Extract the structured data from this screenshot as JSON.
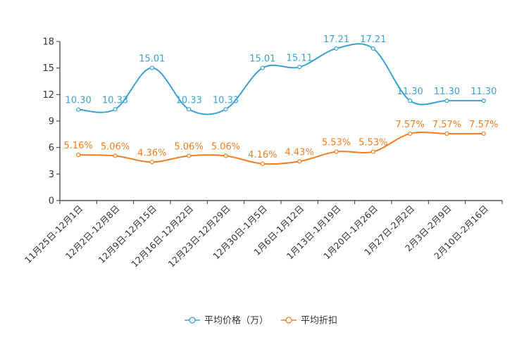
{
  "chart_data": {
    "type": "line",
    "title": "",
    "xlabel": "",
    "ylabel": "",
    "ylim": [
      0,
      18
    ],
    "yticks": [
      0,
      3,
      6,
      9,
      12,
      15,
      18
    ],
    "grid": false,
    "legend_position": "bottom-center",
    "categories": [
      "11月25日-12月1日",
      "12月2日-12月8日",
      "12月9日-12月15日",
      "12月16日-12月22日",
      "12月23日-12月29日",
      "12月30日-1月5日",
      "1月6日-1月12日",
      "1月13日-1月19日",
      "1月20日-1月26日",
      "1月27日-2月2日",
      "2月3日-2月9日",
      "2月10日-2月16日"
    ],
    "series": [
      {
        "name": "平均价格（万）",
        "color": "#3ba1d2",
        "values": [
          10.3,
          10.33,
          15.01,
          10.33,
          10.33,
          15.01,
          15.11,
          17.21,
          17.21,
          11.3,
          11.3,
          11.3
        ],
        "labels": [
          "10.30",
          "10.33",
          "15.01",
          "10.33",
          "10.33",
          "15.01",
          "15.11",
          "17.21",
          "17.21",
          "11.30",
          "11.30",
          "11.30"
        ]
      },
      {
        "name": "平均折扣",
        "color": "#f47d20",
        "values": [
          5.16,
          5.06,
          4.36,
          5.06,
          5.06,
          4.16,
          4.43,
          5.53,
          5.53,
          7.57,
          7.57,
          7.57
        ],
        "labels": [
          "5.16%",
          "5.06%",
          "4.36%",
          "5.06%",
          "5.06%",
          "4.16%",
          "4.43%",
          "5.53%",
          "5.53%",
          "7.57%",
          "7.57%",
          "7.57%"
        ]
      }
    ]
  }
}
